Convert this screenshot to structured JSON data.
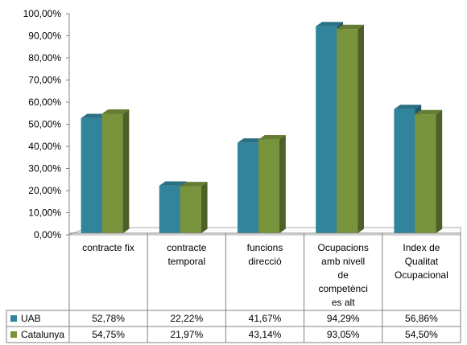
{
  "chart_data": {
    "type": "bar",
    "three_d": true,
    "title": "",
    "xlabel": "",
    "ylabel": "",
    "ylim": [
      0,
      100
    ],
    "y_ticks": [
      "0,00%",
      "10,00%",
      "20,00%",
      "30,00%",
      "40,00%",
      "50,00%",
      "60,00%",
      "70,00%",
      "80,00%",
      "90,00%",
      "100,00%"
    ],
    "grid": false,
    "legend": "data-table",
    "categories": [
      [
        "contracte fix"
      ],
      [
        "contracte",
        "temporal"
      ],
      [
        "funcions",
        "direcció"
      ],
      [
        "Ocupacions",
        "amb nivell",
        "de",
        "competènci",
        "es alt"
      ],
      [
        "Index de",
        "Qualitat",
        "Ocupacional"
      ]
    ],
    "series": [
      {
        "name": "UAB",
        "color": "#31849B",
        "values": [
          52.78,
          22.22,
          41.67,
          94.29,
          56.86
        ],
        "labels": [
          "52,78%",
          "22,22%",
          "41,67%",
          "94,29%",
          "56,86%"
        ]
      },
      {
        "name": "Catalunya",
        "color": "#77933C",
        "values": [
          54.75,
          21.97,
          43.14,
          93.05,
          54.5
        ],
        "labels": [
          "54,75%",
          "21,97%",
          "43,14%",
          "93,05%",
          "54,50%"
        ]
      }
    ]
  }
}
